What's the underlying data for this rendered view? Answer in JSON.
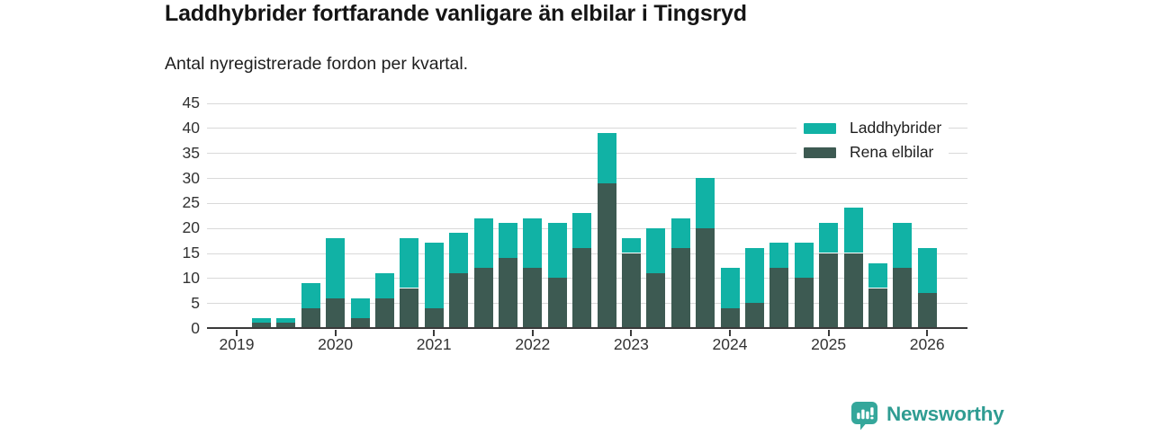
{
  "title": "Laddhybrider fortfarande vanligare än elbilar i Tingsryd",
  "subtitle": "Antal nyregistrerade fordon per kvartal.",
  "footer": {
    "brand": "Newsworthy"
  },
  "colors": {
    "laddhybrider": "#11b2a5",
    "rena_elbilar": "#3d5a52",
    "axis": "#3a3a3a",
    "grid": "#d9d9d9",
    "text": "#333333",
    "brand_teal": "#2f9c92",
    "badge_teal": "#35a79b"
  },
  "chart_data": {
    "type": "bar",
    "stacked": true,
    "title": "Laddhybrider fortfarande vanligare än elbilar i Tingsryd",
    "subtitle": "Antal nyregistrerade fordon per kvartal.",
    "xlabel": "",
    "ylabel": "Antal nyregistrerade fordon per kvartal",
    "categories": [
      "2019 Q1",
      "2019 Q2",
      "2019 Q3",
      "2019 Q4",
      "2020 Q1",
      "2020 Q2",
      "2020 Q3",
      "2020 Q4",
      "2021 Q1",
      "2021 Q2",
      "2021 Q3",
      "2021 Q4",
      "2022 Q1",
      "2022 Q2",
      "2022 Q3",
      "2022 Q4",
      "2023 Q1",
      "2023 Q2",
      "2023 Q3",
      "2023 Q4",
      "2024 Q1",
      "2024 Q2",
      "2024 Q3",
      "2024 Q4",
      "2025 Q1",
      "2025 Q2",
      "2025 Q3",
      "2025 Q4",
      "2026 Q1"
    ],
    "series": [
      {
        "name": "Laddhybrider",
        "color": "#11b2a5",
        "stack_position": "top",
        "values": [
          0,
          1,
          1,
          5,
          12,
          4,
          5,
          10,
          13,
          8,
          10,
          7,
          10,
          11,
          7,
          10,
          3,
          9,
          6,
          10,
          8,
          11,
          5,
          7,
          6,
          9,
          5,
          9,
          9
        ]
      },
      {
        "name": "Rena elbilar",
        "color": "#3d5a52",
        "stack_position": "bottom",
        "values": [
          0,
          1,
          1,
          4,
          6,
          2,
          6,
          8,
          4,
          11,
          12,
          14,
          12,
          10,
          16,
          29,
          15,
          11,
          16,
          20,
          4,
          5,
          12,
          10,
          15,
          15,
          8,
          12,
          7
        ]
      }
    ],
    "stack_totals": [
      0,
      2,
      2,
      9,
      18,
      6,
      11,
      18,
      17,
      19,
      22,
      21,
      22,
      21,
      23,
      39,
      18,
      20,
      22,
      30,
      12,
      16,
      17,
      17,
      21,
      24,
      13,
      21,
      16
    ],
    "ylim": [
      0,
      45
    ],
    "y_ticks": [
      0,
      5,
      10,
      15,
      20,
      25,
      30,
      35,
      40,
      45
    ],
    "x_tick_labels": [
      "2019",
      "2020",
      "2021",
      "2022",
      "2023",
      "2024",
      "2025",
      "2026"
    ],
    "x_tick_category_indices": [
      0,
      4,
      8,
      12,
      16,
      20,
      24,
      28
    ],
    "grid": "horizontal",
    "legend_position": "top-right"
  }
}
